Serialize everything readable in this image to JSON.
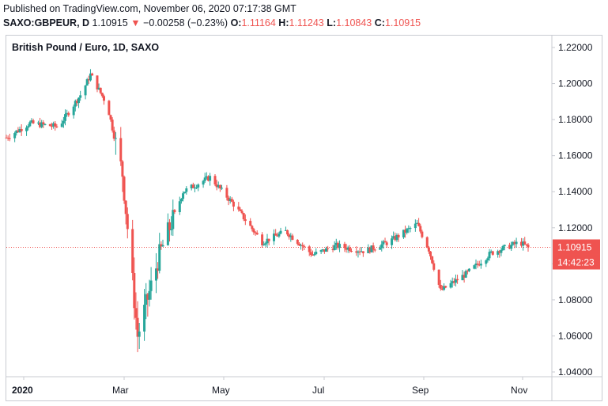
{
  "header": {
    "published": "Published on TradingView.com, November 06, 2020 07:17:38 GMT",
    "symbol": "SAXO:GBPEUR, D",
    "price": "1.10915",
    "change_arrow": "▼",
    "change": "−0.00258 (−0.23%)",
    "o_label": "O:",
    "o_value": "1.11164",
    "h_label": "H:",
    "h_value": "1.11243",
    "l_label": "L:",
    "l_value": "1.10843",
    "c_label": "C:",
    "c_value": "1.10915"
  },
  "colors": {
    "up": "#26a69a",
    "down": "#ef5350",
    "grid": "#e9ebef",
    "axis_border": "#c8cbd2"
  },
  "chart_data": {
    "type": "candlestick",
    "title": "British Pound / Euro, 1D, SAXO",
    "x_tick_labels": [
      "2020",
      "Mar",
      "May",
      "Jul",
      "Sep",
      "Nov"
    ],
    "y_tick_labels": [
      "1.22000",
      "1.20000",
      "1.18000",
      "1.16000",
      "1.14000",
      "1.12000",
      "1.10000",
      "1.08000",
      "1.06000",
      "1.04000"
    ],
    "ylim": [
      1.035,
      1.225
    ],
    "grid": false,
    "last_price_label": "1.10915",
    "countdown_label": "14:42:23",
    "series": [
      {
        "name": "GBPEUR",
        "x": [
          "2020-01-01",
          "2020-01-15",
          "2020-02-01",
          "2020-02-15",
          "2020-02-20",
          "2020-03-01",
          "2020-03-10",
          "2020-03-19",
          "2020-04-01",
          "2020-04-15",
          "2020-05-01",
          "2020-05-15",
          "2020-06-01",
          "2020-06-15",
          "2020-07-01",
          "2020-07-15",
          "2020-08-01",
          "2020-08-15",
          "2020-09-01",
          "2020-09-08",
          "2020-09-15",
          "2020-10-01",
          "2020-10-15",
          "2020-11-01",
          "2020-11-06"
        ],
        "close": [
          1.17,
          1.178,
          1.176,
          1.195,
          1.205,
          1.188,
          1.15,
          1.06,
          1.105,
          1.14,
          1.148,
          1.133,
          1.112,
          1.118,
          1.105,
          1.11,
          1.107,
          1.112,
          1.122,
          1.108,
          1.085,
          1.095,
          1.106,
          1.112,
          1.10915
        ]
      }
    ]
  }
}
